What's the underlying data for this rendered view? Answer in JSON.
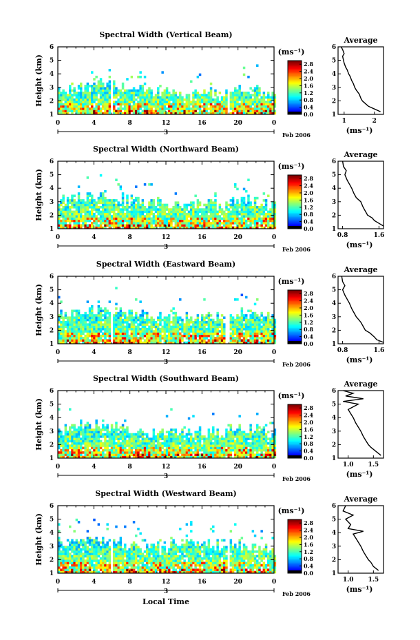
{
  "figure": {
    "xlabel": "Local Time",
    "date_label": "Feb 2006",
    "day_label": "3",
    "colorbar_unit": "(ms⁻¹)",
    "avg_title": "Average",
    "avg_xlabel": "(ms⁻¹)",
    "ylabel": "Height (km)"
  },
  "chart_data": [
    {
      "type": "heatmap",
      "title": "Spectral Width (Vertical Beam)",
      "ylabel": "Height (km)",
      "xlabel": "Local Time",
      "x_ticks": [
        "0",
        "4",
        "8",
        "12",
        "16",
        "20",
        "0"
      ],
      "y_ticks": [
        "1",
        "2",
        "3",
        "4",
        "5",
        "6"
      ],
      "xlim": [
        0,
        24
      ],
      "ylim": [
        1,
        6
      ],
      "colorbar": {
        "ticks": [
          "0.0",
          "0.4",
          "0.8",
          "1.2",
          "1.6",
          "2.0",
          "2.4",
          "2.8"
        ],
        "range": [
          0,
          3.0
        ]
      },
      "data_top_km": {
        "times": [
          0,
          2,
          4,
          6,
          8,
          10,
          12,
          14,
          16,
          18,
          20,
          22,
          24
        ],
        "top": [
          3.0,
          3.2,
          3.6,
          3.3,
          3.0,
          2.8,
          2.7,
          2.6,
          2.8,
          2.5,
          3.0,
          2.9,
          2.5
        ]
      },
      "data_gaps_hours": [
        [
          5.7,
          6.0
        ],
        [
          18.6,
          19.0
        ]
      ],
      "average_profile": {
        "title": "Average",
        "xlabel": "(ms⁻¹)",
        "x_ticks": [
          "1",
          "2"
        ],
        "xlim": [
          0.8,
          2.3
        ],
        "y_ticks": [
          "1",
          "2",
          "3",
          "4",
          "5",
          "6"
        ],
        "height_km": [
          1.2,
          1.4,
          1.6,
          1.8,
          2.0,
          2.2,
          2.5,
          2.8,
          3.0,
          3.3,
          3.5,
          3.8,
          4.0,
          4.3,
          4.5,
          4.8,
          5.0,
          5.3,
          5.5,
          5.8,
          6.0
        ],
        "values": [
          2.2,
          2.0,
          1.8,
          1.7,
          1.6,
          1.55,
          1.5,
          1.4,
          1.35,
          1.3,
          1.25,
          1.2,
          1.15,
          1.1,
          1.05,
          1.0,
          0.98,
          0.95,
          1.0,
          0.95,
          0.9
        ]
      }
    },
    {
      "type": "heatmap",
      "title": "Spectral Width (Northward Beam)",
      "ylabel": "Height (km)",
      "x_ticks": [
        "0",
        "4",
        "8",
        "12",
        "16",
        "20",
        "0"
      ],
      "y_ticks": [
        "1",
        "2",
        "3",
        "4",
        "5",
        "6"
      ],
      "xlim": [
        0,
        24
      ],
      "ylim": [
        1,
        6
      ],
      "colorbar": {
        "ticks": [
          "0.0",
          "0.4",
          "0.8",
          "1.2",
          "1.6",
          "2.0",
          "2.4",
          "2.8"
        ],
        "range": [
          0,
          3.0
        ]
      },
      "data_top_km": {
        "times": [
          0,
          2,
          4,
          6,
          8,
          10,
          12,
          14,
          16,
          18,
          20,
          22,
          24
        ],
        "top": [
          3.2,
          3.4,
          3.5,
          3.3,
          3.2,
          3.0,
          3.0,
          2.8,
          3.0,
          2.8,
          3.2,
          3.1,
          2.8
        ]
      },
      "data_gaps_hours": [],
      "average_profile": {
        "title": "Average",
        "xlabel": "(ms⁻¹)",
        "x_ticks": [
          "0.8",
          "1.6"
        ],
        "xlim": [
          0.7,
          1.7
        ],
        "y_ticks": [
          "1",
          "2",
          "3",
          "4",
          "5",
          "6"
        ],
        "height_km": [
          1.2,
          1.4,
          1.6,
          1.8,
          2.0,
          2.3,
          2.6,
          3.0,
          3.3,
          3.6,
          4.0,
          4.3,
          4.6,
          5.0,
          5.3,
          5.6,
          6.0
        ],
        "values": [
          1.7,
          1.6,
          1.5,
          1.45,
          1.35,
          1.3,
          1.25,
          1.2,
          1.1,
          1.05,
          1.0,
          0.95,
          0.9,
          0.85,
          0.88,
          0.82,
          0.8
        ]
      }
    },
    {
      "type": "heatmap",
      "title": "Spectral Width (Eastward Beam)",
      "ylabel": "Height (km)",
      "x_ticks": [
        "0",
        "4",
        "8",
        "12",
        "16",
        "20",
        "0"
      ],
      "y_ticks": [
        "1",
        "2",
        "3",
        "4",
        "5",
        "6"
      ],
      "xlim": [
        0,
        24
      ],
      "ylim": [
        1,
        6
      ],
      "colorbar": {
        "ticks": [
          "0.0",
          "0.4",
          "0.8",
          "1.2",
          "1.6",
          "2.0",
          "2.4",
          "2.8"
        ],
        "range": [
          0,
          3.0
        ]
      },
      "data_top_km": {
        "times": [
          0,
          2,
          4,
          6,
          8,
          10,
          12,
          14,
          16,
          18,
          20,
          22,
          24
        ],
        "top": [
          3.4,
          3.5,
          3.7,
          3.5,
          3.3,
          3.2,
          3.1,
          3.0,
          3.3,
          3.1,
          3.4,
          3.2,
          3.0
        ]
      },
      "data_gaps_hours": [
        [
          5.8,
          6.1
        ],
        [
          18.5,
          18.9
        ]
      ],
      "average_profile": {
        "title": "Average",
        "xlabel": "(ms⁻¹)",
        "x_ticks": [
          "0.8",
          "1.6"
        ],
        "xlim": [
          0.7,
          1.7
        ],
        "y_ticks": [
          "1",
          "2",
          "3",
          "4",
          "5",
          "6"
        ],
        "height_km": [
          1.1,
          1.3,
          1.5,
          1.8,
          2.0,
          2.3,
          2.6,
          3.0,
          3.3,
          3.6,
          4.0,
          4.3,
          4.6,
          5.0,
          5.3,
          5.6,
          6.0
        ],
        "values": [
          1.7,
          1.55,
          1.5,
          1.4,
          1.3,
          1.25,
          1.2,
          1.1,
          1.05,
          1.0,
          0.95,
          0.9,
          0.85,
          0.8,
          0.85,
          0.8,
          0.78
        ]
      }
    },
    {
      "type": "heatmap",
      "title": "Spectral Width (Southward Beam)",
      "ylabel": "Height (km)",
      "x_ticks": [
        "0",
        "4",
        "8",
        "12",
        "16",
        "20",
        "0"
      ],
      "y_ticks": [
        "1",
        "2",
        "3",
        "4",
        "5",
        "6"
      ],
      "xlim": [
        0,
        24
      ],
      "ylim": [
        1,
        6
      ],
      "colorbar": {
        "ticks": [
          "0.0",
          "0.4",
          "0.8",
          "1.2",
          "1.6",
          "2.0",
          "2.4",
          "2.8"
        ],
        "range": [
          0,
          3.0
        ]
      },
      "data_top_km": {
        "times": [
          0,
          2,
          4,
          6,
          8,
          10,
          12,
          14,
          16,
          18,
          20,
          22,
          24
        ],
        "top": [
          3.3,
          3.5,
          3.6,
          3.4,
          3.2,
          3.0,
          3.0,
          2.9,
          3.1,
          3.0,
          3.3,
          3.2,
          2.9
        ]
      },
      "data_gaps_hours": [],
      "average_profile": {
        "title": "Average",
        "xlabel": "(ms⁻¹)",
        "x_ticks": [
          "1.0",
          "1.5"
        ],
        "xlim": [
          0.8,
          1.7
        ],
        "y_ticks": [
          "1",
          "2",
          "3",
          "4",
          "5",
          "6"
        ],
        "height_km": [
          1.2,
          1.5,
          1.8,
          2.0,
          2.3,
          2.6,
          3.0,
          3.3,
          3.6,
          4.0,
          4.3,
          4.6,
          5.0,
          5.2,
          5.4,
          5.6,
          5.8,
          6.0
        ],
        "values": [
          1.65,
          1.55,
          1.45,
          1.4,
          1.35,
          1.3,
          1.25,
          1.2,
          1.15,
          1.1,
          1.05,
          1.0,
          1.2,
          0.9,
          1.3,
          0.95,
          1.1,
          0.9
        ]
      }
    },
    {
      "type": "heatmap",
      "title": "Spectral Width (Westward Beam)",
      "ylabel": "Height (km)",
      "xlabel": "Local Time",
      "x_ticks": [
        "0",
        "4",
        "8",
        "12",
        "16",
        "20",
        "0"
      ],
      "y_ticks": [
        "1",
        "2",
        "3",
        "4",
        "5",
        "6"
      ],
      "xlim": [
        0,
        24
      ],
      "ylim": [
        1,
        6
      ],
      "colorbar": {
        "ticks": [
          "0.0",
          "0.4",
          "0.8",
          "1.2",
          "1.6",
          "2.0",
          "2.4",
          "2.8"
        ],
        "range": [
          0,
          3.0
        ]
      },
      "data_top_km": {
        "times": [
          0,
          2,
          4,
          6,
          8,
          10,
          12,
          14,
          16,
          18,
          20,
          22,
          24
        ],
        "top": [
          3.2,
          3.4,
          3.6,
          3.4,
          3.1,
          3.0,
          3.1,
          3.6,
          3.3,
          3.0,
          3.2,
          3.0,
          2.8
        ]
      },
      "data_gaps_hours": [
        [
          5.8,
          6.1
        ],
        [
          18.6,
          18.9
        ]
      ],
      "average_profile": {
        "title": "Average",
        "xlabel": "(ms⁻¹)",
        "x_ticks": [
          "1.0",
          "1.5"
        ],
        "xlim": [
          0.8,
          1.7
        ],
        "y_ticks": [
          "1",
          "2",
          "3",
          "4",
          "5",
          "6"
        ],
        "height_km": [
          1.2,
          1.5,
          1.8,
          2.0,
          2.3,
          2.6,
          3.0,
          3.3,
          3.6,
          3.9,
          4.1,
          4.3,
          4.6,
          5.0,
          5.3,
          5.6,
          6.0
        ],
        "values": [
          1.6,
          1.5,
          1.45,
          1.4,
          1.35,
          1.3,
          1.25,
          1.2,
          1.15,
          1.1,
          1.3,
          1.0,
          1.05,
          0.95,
          1.1,
          0.9,
          0.95
        ]
      }
    }
  ]
}
